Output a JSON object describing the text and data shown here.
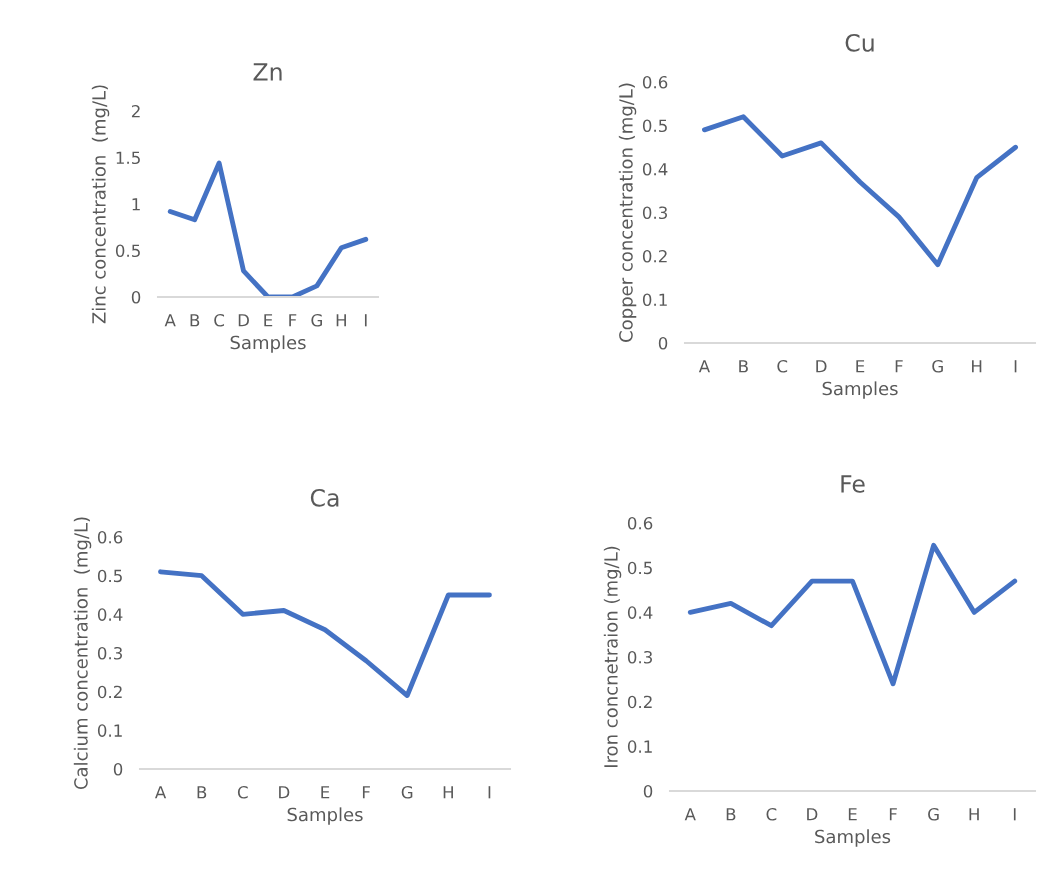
{
  "chart_data": [
    {
      "type": "line",
      "title": "Zn",
      "xlabel": "Samples",
      "ylabel": "Zinc concentration  (mg/L)",
      "categories": [
        "A",
        "B",
        "C",
        "D",
        "E",
        "F",
        "G",
        "H",
        "I"
      ],
      "series": [
        {
          "color": "#4472c4",
          "values": [
            0.92,
            0.83,
            1.44,
            0.28,
            0,
            0,
            0.12,
            0.53,
            0.62
          ]
        }
      ],
      "ylim": [
        0,
        2
      ],
      "yticks": [
        0,
        {
          "value": 0.5,
          "label": "0.5"
        },
        1,
        {
          "value": 1.5,
          "label": "1.5"
        },
        2
      ],
      "grid": false,
      "legend": false
    },
    {
      "type": "line",
      "title": "Cu",
      "xlabel": "Samples",
      "ylabel": "Copper concentration (mg/L)",
      "categories": [
        "A",
        "B",
        "C",
        "D",
        "E",
        "F",
        "G",
        "H",
        "I"
      ],
      "series": [
        {
          "color": "#4472c4",
          "values": [
            0.49,
            0.52,
            0.43,
            0.46,
            0.37,
            0.29,
            0.18,
            0.38,
            0.45
          ]
        }
      ],
      "ylim": [
        0,
        0.6
      ],
      "yticks": [
        0,
        0.1,
        0.2,
        0.3,
        0.4,
        0.5,
        0.6
      ],
      "grid": false,
      "legend": false
    },
    {
      "type": "line",
      "title": "Ca",
      "xlabel": "Samples",
      "ylabel": "Calcium concentration  (mg/L)",
      "categories": [
        "A",
        "B",
        "C",
        "D",
        "E",
        "F",
        "G",
        "H",
        "I"
      ],
      "series": [
        {
          "color": "#4472c4",
          "values": [
            0.51,
            0.5,
            0.4,
            0.41,
            0.36,
            0.28,
            0.19,
            0.45,
            0.45
          ]
        }
      ],
      "ylim": [
        0,
        0.6
      ],
      "yticks": [
        0,
        0.1,
        0.2,
        0.3,
        0.4,
        0.5,
        0.6
      ],
      "grid": false,
      "legend": false
    },
    {
      "type": "line",
      "title": "Fe",
      "xlabel": "Samples",
      "ylabel": "Iron concnetraion (mg/L)",
      "categories": [
        "A",
        "B",
        "C",
        "D",
        "E",
        "F",
        "G",
        "H",
        "I"
      ],
      "series": [
        {
          "color": "#4472c4",
          "values": [
            0.4,
            0.42,
            0.37,
            0.47,
            0.47,
            0.24,
            0.55,
            0.4,
            0.47
          ]
        }
      ],
      "ylim": [
        0,
        0.6
      ],
      "yticks": [
        0,
        0.1,
        0.2,
        0.3,
        0.4,
        0.5,
        0.6
      ],
      "grid": false,
      "legend": false
    }
  ]
}
